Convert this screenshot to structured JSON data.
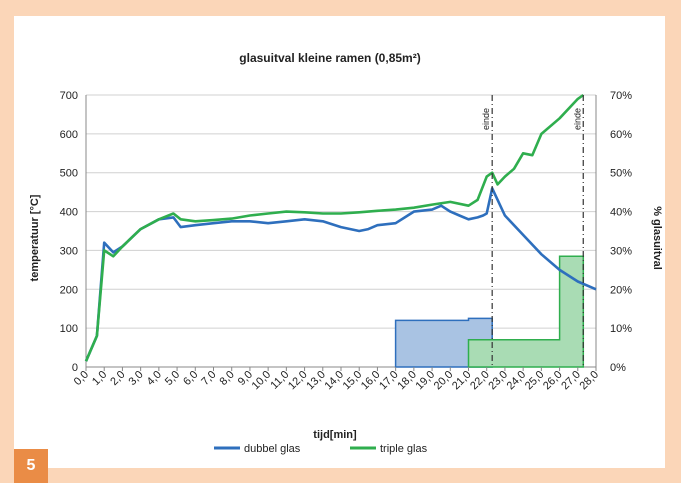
{
  "badge": "5",
  "colors": {
    "dubbel": "#2e6fbd",
    "triple": "#2fae4e",
    "dubbel_fill": "#a9c3e3",
    "triple_fill": "#a9dcb4",
    "page_bg": "#fbd6b8",
    "badge_bg": "#ea8c46"
  },
  "chart_data": {
    "type": "line",
    "title": "glasuitval kleine ramen (0,85m²)",
    "xlabel": "tijd[min]",
    "ylabel": "temperatuur [°C]",
    "y2label": "% glasuitval",
    "xlim": [
      0,
      28
    ],
    "ylim": [
      0,
      700
    ],
    "y2lim": [
      0,
      70
    ],
    "grid": true,
    "legend_position": "bottom",
    "x_ticks": [
      "0,0",
      "1,0",
      "2,0",
      "3,0",
      "4,0",
      "5,0",
      "6,0",
      "7,0",
      "8,0",
      "9,0",
      "10,0",
      "11,0",
      "12,0",
      "13,0",
      "14,0",
      "15,0",
      "16,0",
      "17,0",
      "18,0",
      "19,0",
      "20,0",
      "21,0",
      "22,0",
      "23,0",
      "24,0",
      "25,0",
      "26,0",
      "27,0",
      "28,0"
    ],
    "y_ticks": [
      "0",
      "100",
      "200",
      "300",
      "400",
      "500",
      "600",
      "700"
    ],
    "y2_ticks": [
      "0%",
      "10%",
      "20%",
      "30%",
      "40%",
      "50%",
      "60%",
      "70%"
    ],
    "annotations": [
      {
        "text": "einde",
        "x": 22.3
      },
      {
        "text": "einde",
        "x": 27.3
      }
    ],
    "series": [
      {
        "name": "dubbel glas",
        "axis": "left",
        "kind": "line",
        "x": [
          0,
          0.6,
          1.0,
          1.5,
          2.0,
          3.0,
          4.0,
          4.8,
          5.2,
          6.0,
          7.0,
          8.0,
          9.0,
          10.0,
          11.0,
          12.0,
          13.0,
          14.0,
          15.0,
          15.5,
          16.0,
          17.0,
          17.5,
          18.0,
          19.0,
          19.5,
          20.0,
          20.5,
          21.0,
          21.5,
          21.8,
          22.0,
          22.3,
          23.0,
          24.0,
          25.0,
          26.0,
          27.0,
          28.0
        ],
        "y": [
          15,
          80,
          320,
          295,
          310,
          355,
          380,
          385,
          360,
          365,
          370,
          375,
          375,
          370,
          375,
          380,
          375,
          360,
          350,
          355,
          365,
          370,
          385,
          400,
          405,
          415,
          400,
          390,
          380,
          385,
          390,
          395,
          460,
          390,
          340,
          290,
          250,
          220,
          200
        ]
      },
      {
        "name": "triple glas",
        "axis": "left",
        "kind": "line",
        "x": [
          0,
          0.6,
          1.0,
          1.5,
          2.0,
          3.0,
          4.0,
          4.8,
          5.2,
          6.0,
          7.0,
          8.0,
          9.0,
          10.0,
          11.0,
          12.0,
          13.0,
          14.0,
          15.0,
          16.0,
          17.0,
          18.0,
          19.0,
          20.0,
          21.0,
          21.5,
          22.0,
          22.3,
          22.6,
          23.0,
          23.5,
          24.0,
          24.5,
          25.0,
          26.0,
          27.0,
          27.3
        ],
        "y": [
          15,
          80,
          300,
          285,
          310,
          355,
          380,
          395,
          380,
          375,
          378,
          382,
          390,
          395,
          400,
          398,
          395,
          395,
          398,
          402,
          405,
          410,
          418,
          425,
          415,
          430,
          490,
          500,
          470,
          490,
          510,
          550,
          545,
          600,
          640,
          690,
          700
        ]
      },
      {
        "name": "dubbel glas",
        "axis": "right",
        "kind": "area_step",
        "x": [
          17.0,
          17.0,
          21.0,
          21.0,
          22.3,
          22.3
        ],
        "y": [
          0,
          12,
          12,
          12.5,
          12.5,
          0
        ]
      },
      {
        "name": "triple glas",
        "axis": "right",
        "kind": "area_step",
        "x": [
          21.0,
          21.0,
          26.0,
          26.0,
          27.3,
          27.3
        ],
        "y": [
          0,
          7,
          7,
          28.5,
          28.5,
          0
        ]
      }
    ]
  }
}
